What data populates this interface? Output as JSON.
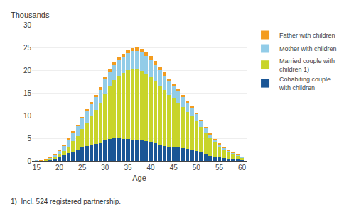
{
  "chart_data": {
    "type": "bar",
    "stacked": true,
    "xlabel": "Age",
    "ylabel": "Thousands",
    "footnote": "1)  Incl. 524 registered partnership.",
    "x": [
      15,
      16,
      17,
      18,
      19,
      20,
      21,
      22,
      23,
      24,
      25,
      26,
      27,
      28,
      29,
      30,
      31,
      32,
      33,
      34,
      35,
      36,
      37,
      38,
      39,
      40,
      41,
      42,
      43,
      44,
      45,
      46,
      47,
      48,
      49,
      50,
      51,
      52,
      53,
      54,
      55,
      56,
      57,
      58,
      59,
      60
    ],
    "series": [
      {
        "name": "Cohabiting couple\nwith children",
        "color": "#1a5696",
        "values": [
          0.02,
          0.05,
          0.12,
          0.25,
          0.5,
          0.85,
          1.2,
          1.65,
          2.0,
          2.4,
          3.0,
          3.3,
          3.5,
          3.7,
          3.9,
          4.6,
          4.85,
          4.95,
          4.95,
          4.85,
          4.8,
          4.75,
          4.65,
          4.55,
          4.35,
          4.1,
          3.85,
          3.55,
          3.35,
          3.2,
          3.1,
          3.0,
          2.85,
          2.65,
          2.45,
          2.15,
          1.85,
          1.45,
          1.15,
          0.9,
          0.75,
          0.6,
          0.5,
          0.4,
          0.3,
          0.2
        ]
      },
      {
        "name": "Married couple with\nchildren 1)",
        "color": "#c8d42a",
        "values": [
          0.01,
          0.03,
          0.07,
          0.15,
          0.3,
          0.55,
          1.0,
          1.5,
          2.3,
          3.1,
          4.0,
          5.1,
          6.3,
          7.5,
          8.8,
          10.2,
          11.5,
          12.8,
          13.8,
          14.5,
          15.2,
          15.5,
          15.5,
          15.3,
          14.9,
          14.3,
          13.7,
          13.0,
          12.2,
          11.4,
          10.6,
          9.8,
          9.0,
          8.2,
          7.4,
          6.6,
          5.6,
          4.7,
          3.8,
          3.1,
          2.45,
          1.9,
          1.5,
          1.15,
          0.85,
          0.5
        ]
      },
      {
        "name": "Mother with children",
        "color": "#92cce8",
        "values": [
          0.01,
          0.03,
          0.1,
          0.25,
          0.5,
          0.9,
          1.2,
          1.6,
          1.9,
          2.1,
          2.3,
          2.5,
          2.65,
          2.8,
          3.0,
          3.1,
          3.2,
          3.35,
          3.5,
          3.6,
          3.8,
          3.9,
          4.0,
          4.0,
          3.9,
          3.8,
          3.6,
          3.4,
          3.2,
          2.9,
          2.7,
          2.45,
          2.2,
          2.0,
          1.8,
          1.55,
          1.3,
          1.05,
          0.85,
          0.65,
          0.5,
          0.38,
          0.3,
          0.22,
          0.17,
          0.1
        ]
      },
      {
        "name": "Father with children",
        "color": "#f39c1f",
        "values": [
          0.0,
          0.01,
          0.02,
          0.04,
          0.07,
          0.12,
          0.18,
          0.25,
          0.3,
          0.38,
          0.42,
          0.46,
          0.5,
          0.52,
          0.55,
          0.58,
          0.6,
          0.62,
          0.65,
          0.68,
          0.72,
          0.75,
          0.78,
          0.8,
          0.82,
          0.85,
          0.82,
          0.78,
          0.72,
          0.68,
          0.62,
          0.58,
          0.52,
          0.5,
          0.45,
          0.4,
          0.35,
          0.28,
          0.22,
          0.17,
          0.13,
          0.1,
          0.08,
          0.06,
          0.04,
          0.03
        ]
      }
    ],
    "xlim": [
      14,
      61
    ],
    "xticks": [
      15,
      20,
      25,
      30,
      35,
      40,
      45,
      50,
      55,
      60
    ],
    "ylim": [
      0,
      30
    ],
    "yticks": [
      0,
      5,
      10,
      15,
      20,
      25,
      30
    ],
    "grid": true,
    "legend": "upper right"
  }
}
